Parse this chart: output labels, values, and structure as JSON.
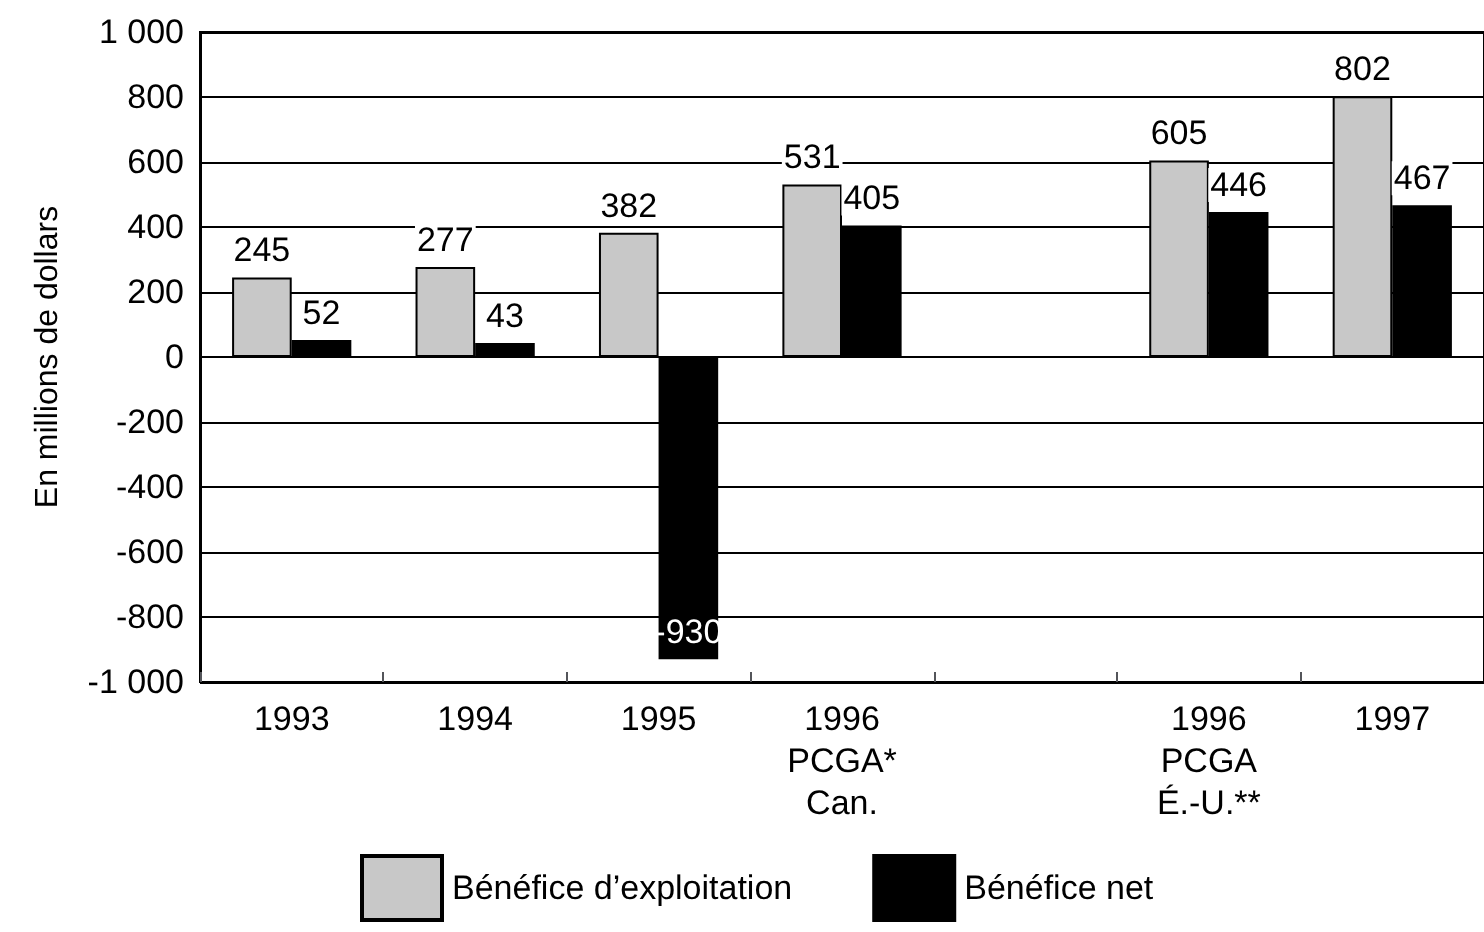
{
  "chart_data": {
    "type": "bar",
    "ylabel": "En millions de dollars",
    "categories": [
      "1993",
      "1994",
      "1995",
      "1996\nPCGA*\nCan.",
      null,
      "1996\nPCGA\nÉ.-U.**",
      "1997"
    ],
    "series": [
      {
        "name": "Bénéfice d’exploitation",
        "color": "#c8c8c8",
        "values": [
          245,
          277,
          382,
          531,
          null,
          605,
          802
        ]
      },
      {
        "name": "Bénéfice net",
        "color": "#000000",
        "values": [
          52,
          43,
          -930,
          405,
          null,
          446,
          467
        ]
      }
    ],
    "ylim": [
      -1000,
      1000
    ],
    "yticks": [
      {
        "value": -1000,
        "label": "-1 000"
      },
      -800,
      -600,
      -400,
      -200,
      0,
      200,
      400,
      600,
      800,
      {
        "value": 1000,
        "label": "1 000"
      }
    ],
    "grid": "y",
    "legend": "bottom",
    "data_labels": true
  }
}
